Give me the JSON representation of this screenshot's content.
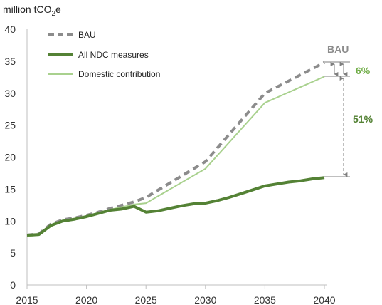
{
  "chart_data": {
    "type": "line",
    "ylabel": "million tCO",
    "ylabel_sub": "2",
    "ylabel_suffix": "e",
    "x_ticks": [
      "2015",
      "2020",
      "2025",
      "2030",
      "2035",
      "2040"
    ],
    "y_ticks": [
      "0",
      "5",
      "10",
      "15",
      "20",
      "25",
      "30",
      "35",
      "40"
    ],
    "xlim": [
      2015,
      2040
    ],
    "ylim": [
      0,
      40
    ],
    "grid": false,
    "legend_position": "top-left",
    "series": [
      {
        "name": "BAU",
        "style": "dashed",
        "color": "#8c8c8c",
        "x": [
          2015,
          2016,
          2017,
          2018,
          2019,
          2020,
          2021,
          2022,
          2023,
          2024,
          2025,
          2030,
          2035,
          2040
        ],
        "values": [
          7.8,
          8.0,
          9.5,
          10.2,
          10.5,
          10.9,
          11.4,
          12.0,
          12.5,
          13.0,
          13.7,
          19.3,
          30.0,
          34.8
        ]
      },
      {
        "name": "All NDC measures",
        "style": "solid-thick",
        "color": "#548235",
        "x": [
          2015,
          2016,
          2017,
          2018,
          2019,
          2020,
          2021,
          2022,
          2023,
          2024,
          2025,
          2026,
          2027,
          2028,
          2029,
          2030,
          2031,
          2032,
          2033,
          2034,
          2035,
          2036,
          2037,
          2038,
          2039,
          2040
        ],
        "values": [
          7.8,
          7.9,
          9.3,
          10.0,
          10.3,
          10.7,
          11.2,
          11.7,
          11.9,
          12.3,
          11.4,
          11.6,
          12.0,
          12.4,
          12.7,
          12.8,
          13.2,
          13.7,
          14.3,
          14.9,
          15.5,
          15.8,
          16.1,
          16.3,
          16.6,
          16.8
        ]
      },
      {
        "name": "Domestic contribution",
        "style": "solid-thin",
        "color": "#a9d18e",
        "x": [
          2015,
          2016,
          2017,
          2018,
          2019,
          2020,
          2021,
          2022,
          2023,
          2024,
          2025,
          2030,
          2035,
          2040
        ],
        "values": [
          7.6,
          7.8,
          9.3,
          9.9,
          10.2,
          10.6,
          11.3,
          11.8,
          12.2,
          12.6,
          12.8,
          18.2,
          28.5,
          32.6
        ]
      }
    ],
    "annotations": {
      "bau_label": "BAU",
      "domestic_gap_label": "6%",
      "ndc_gap_label": "51%",
      "bau_color": "#8c8c8c",
      "domestic_color": "#70ad47",
      "ndc_color": "#548235"
    }
  }
}
